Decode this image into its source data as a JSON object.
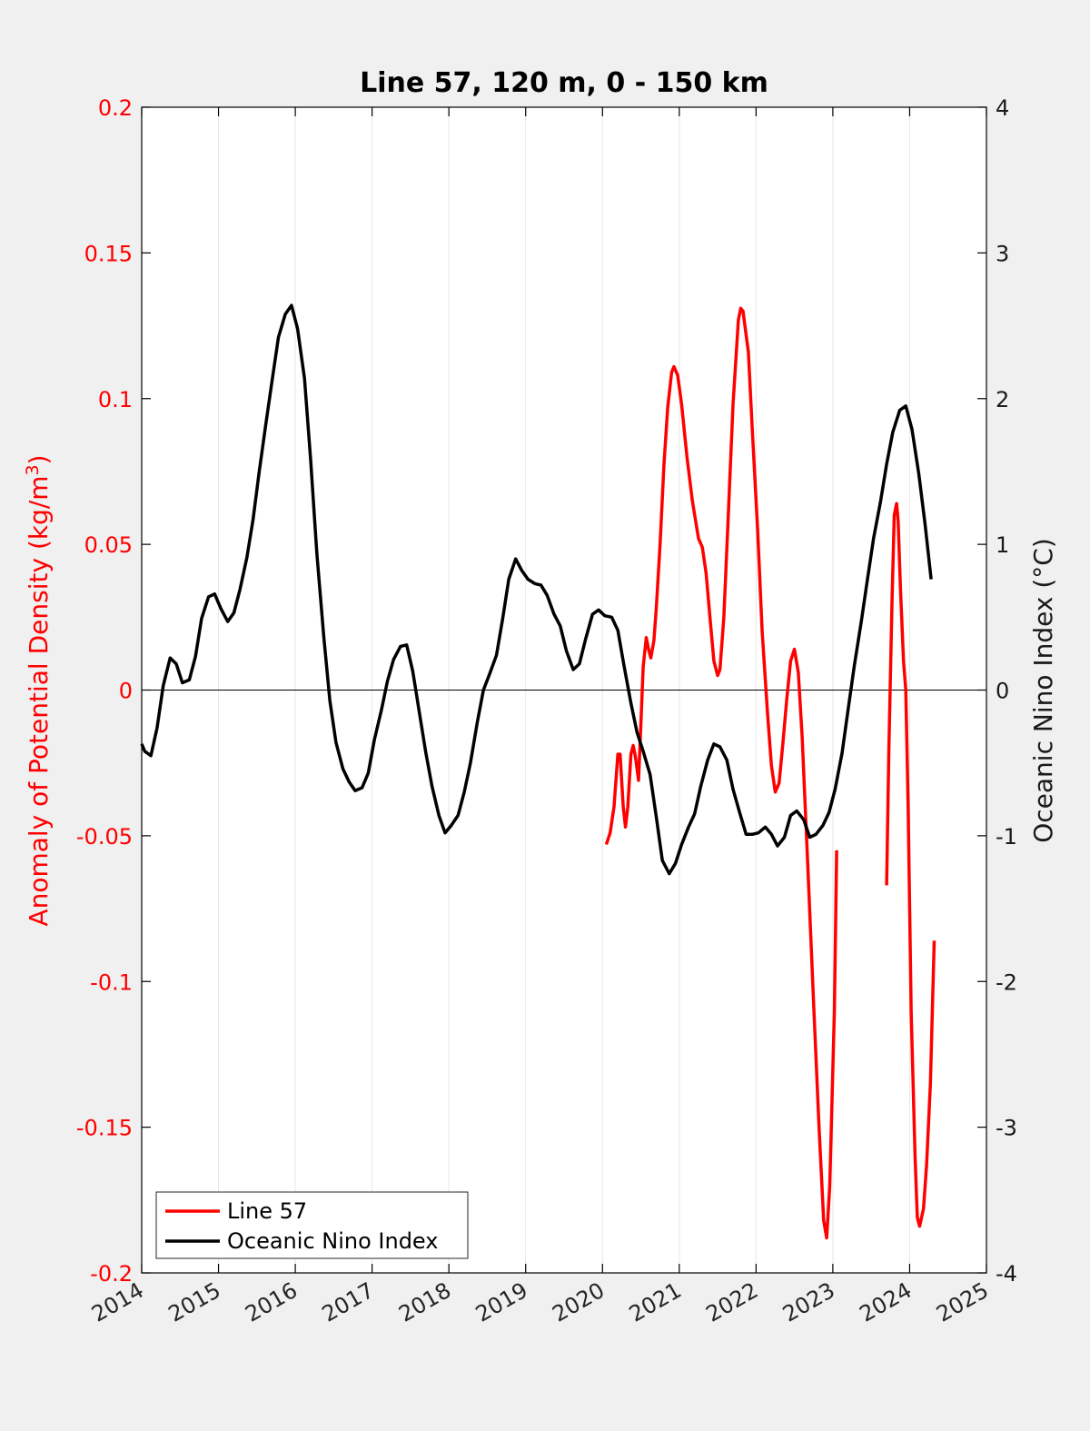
{
  "chart_data": {
    "type": "line",
    "title": "Line 57, 120 m, 0 - 150 km",
    "ylabel_left": "Anomaly of Potential Density (kg/m",
    "ylabel_left_sup": "3",
    "ylabel_left_close": ")",
    "ylabel_right": "Oceanic Nino Index (°C)",
    "xlim": [
      2014,
      2025
    ],
    "ylim_left": [
      -0.2,
      0.2
    ],
    "ylim_right": [
      -4,
      4
    ],
    "x_ticks": [
      "2014",
      "2015",
      "2016",
      "2017",
      "2018",
      "2019",
      "2020",
      "2021",
      "2022",
      "2023",
      "2024",
      "2025"
    ],
    "y_left_ticks": [
      "0.2",
      "0.15",
      "0.1",
      "0.05",
      "0",
      "-0.05",
      "-0.1",
      "-0.15",
      "-0.2"
    ],
    "y_right_ticks": [
      "4",
      "3",
      "2",
      "1",
      "0",
      "-1",
      "-2",
      "-3",
      "-4"
    ],
    "x_grid": true,
    "zero_line": true,
    "legend_position": "bottom-left",
    "series": [
      {
        "name": "Line 57",
        "axis": "left",
        "color": "#ff0000",
        "segments": [
          [
            [
              2020.05,
              -0.053
            ],
            [
              2020.1,
              -0.049
            ],
            [
              2020.15,
              -0.04
            ],
            [
              2020.2,
              -0.022
            ],
            [
              2020.23,
              -0.022
            ],
            [
              2020.27,
              -0.04
            ],
            [
              2020.3,
              -0.047
            ],
            [
              2020.33,
              -0.04
            ],
            [
              2020.37,
              -0.022
            ],
            [
              2020.4,
              -0.019
            ],
            [
              2020.43,
              -0.023
            ],
            [
              2020.47,
              -0.031
            ],
            [
              2020.5,
              -0.012
            ],
            [
              2020.53,
              0.008
            ],
            [
              2020.57,
              0.018
            ],
            [
              2020.6,
              0.014
            ],
            [
              2020.63,
              0.011
            ],
            [
              2020.67,
              0.017
            ],
            [
              2020.7,
              0.028
            ],
            [
              2020.75,
              0.05
            ],
            [
              2020.8,
              0.077
            ],
            [
              2020.85,
              0.097
            ],
            [
              2020.9,
              0.109
            ],
            [
              2020.93,
              0.111
            ],
            [
              2020.98,
              0.108
            ],
            [
              2021.03,
              0.098
            ],
            [
              2021.1,
              0.08
            ],
            [
              2021.17,
              0.065
            ],
            [
              2021.25,
              0.052
            ],
            [
              2021.3,
              0.049
            ],
            [
              2021.35,
              0.04
            ],
            [
              2021.4,
              0.025
            ],
            [
              2021.45,
              0.01
            ],
            [
              2021.5,
              0.005
            ],
            [
              2021.53,
              0.007
            ],
            [
              2021.58,
              0.025
            ],
            [
              2021.63,
              0.055
            ],
            [
              2021.7,
              0.098
            ],
            [
              2021.77,
              0.127
            ],
            [
              2021.8,
              0.131
            ],
            [
              2021.83,
              0.13
            ],
            [
              2021.9,
              0.116
            ],
            [
              2021.95,
              0.09
            ],
            [
              2022.02,
              0.055
            ],
            [
              2022.08,
              0.02
            ],
            [
              2022.15,
              -0.008
            ],
            [
              2022.2,
              -0.026
            ],
            [
              2022.25,
              -0.035
            ],
            [
              2022.3,
              -0.032
            ],
            [
              2022.35,
              -0.018
            ],
            [
              2022.4,
              -0.003
            ],
            [
              2022.45,
              0.01
            ],
            [
              2022.5,
              0.014
            ],
            [
              2022.55,
              0.006
            ],
            [
              2022.6,
              -0.016
            ],
            [
              2022.67,
              -0.058
            ],
            [
              2022.75,
              -0.108
            ],
            [
              2022.82,
              -0.15
            ],
            [
              2022.88,
              -0.182
            ],
            [
              2022.92,
              -0.188
            ],
            [
              2022.96,
              -0.17
            ],
            [
              2023.02,
              -0.11
            ],
            [
              2023.05,
              -0.055
            ]
          ],
          [
            [
              2023.7,
              -0.067
            ],
            [
              2023.73,
              -0.02
            ],
            [
              2023.77,
              0.03
            ],
            [
              2023.8,
              0.06
            ],
            [
              2023.83,
              0.064
            ],
            [
              2023.85,
              0.058
            ],
            [
              2023.88,
              0.035
            ],
            [
              2023.92,
              0.01
            ],
            [
              2023.95,
              0
            ],
            [
              2023.98,
              -0.04
            ],
            [
              2024.02,
              -0.11
            ],
            [
              2024.07,
              -0.16
            ],
            [
              2024.1,
              -0.181
            ],
            [
              2024.13,
              -0.184
            ],
            [
              2024.18,
              -0.178
            ],
            [
              2024.22,
              -0.163
            ],
            [
              2024.27,
              -0.135
            ],
            [
              2024.32,
              -0.086
            ]
          ]
        ]
      },
      {
        "name": "Oceanic Nino Index",
        "axis": "right",
        "color": "#000000",
        "segments": [
          [
            [
              2014.0,
              -0.37
            ],
            [
              2014.04,
              -0.42
            ],
            [
              2014.12,
              -0.45
            ],
            [
              2014.2,
              -0.26
            ],
            [
              2014.28,
              0.03
            ],
            [
              2014.37,
              0.22
            ],
            [
              2014.45,
              0.18
            ],
            [
              2014.53,
              0.05
            ],
            [
              2014.62,
              0.07
            ],
            [
              2014.7,
              0.23
            ],
            [
              2014.78,
              0.49
            ],
            [
              2014.87,
              0.64
            ],
            [
              2014.95,
              0.66
            ],
            [
              2015.03,
              0.56
            ],
            [
              2015.12,
              0.47
            ],
            [
              2015.2,
              0.53
            ],
            [
              2015.28,
              0.69
            ],
            [
              2015.37,
              0.91
            ],
            [
              2015.45,
              1.17
            ],
            [
              2015.53,
              1.5
            ],
            [
              2015.62,
              1.84
            ],
            [
              2015.7,
              2.13
            ],
            [
              2015.78,
              2.42
            ],
            [
              2015.87,
              2.58
            ],
            [
              2015.95,
              2.64
            ],
            [
              2016.03,
              2.48
            ],
            [
              2016.12,
              2.14
            ],
            [
              2016.2,
              1.58
            ],
            [
              2016.28,
              0.94
            ],
            [
              2016.37,
              0.37
            ],
            [
              2016.45,
              -0.07
            ],
            [
              2016.53,
              -0.36
            ],
            [
              2016.62,
              -0.54
            ],
            [
              2016.7,
              -0.63
            ],
            [
              2016.78,
              -0.69
            ],
            [
              2016.87,
              -0.67
            ],
            [
              2016.95,
              -0.57
            ],
            [
              2017.03,
              -0.34
            ],
            [
              2017.12,
              -0.14
            ],
            [
              2017.2,
              0.06
            ],
            [
              2017.28,
              0.21
            ],
            [
              2017.37,
              0.3
            ],
            [
              2017.45,
              0.31
            ],
            [
              2017.53,
              0.13
            ],
            [
              2017.62,
              -0.17
            ],
            [
              2017.7,
              -0.43
            ],
            [
              2017.78,
              -0.66
            ],
            [
              2017.87,
              -0.86
            ],
            [
              2017.95,
              -0.98
            ],
            [
              2018.03,
              -0.93
            ],
            [
              2018.12,
              -0.86
            ],
            [
              2018.2,
              -0.7
            ],
            [
              2018.28,
              -0.5
            ],
            [
              2018.37,
              -0.22
            ],
            [
              2018.45,
              0.0
            ],
            [
              2018.53,
              0.11
            ],
            [
              2018.62,
              0.24
            ],
            [
              2018.7,
              0.49
            ],
            [
              2018.78,
              0.76
            ],
            [
              2018.87,
              0.9
            ],
            [
              2018.95,
              0.82
            ],
            [
              2019.03,
              0.76
            ],
            [
              2019.12,
              0.73
            ],
            [
              2019.2,
              0.72
            ],
            [
              2019.28,
              0.65
            ],
            [
              2019.37,
              0.52
            ],
            [
              2019.45,
              0.44
            ],
            [
              2019.53,
              0.27
            ],
            [
              2019.62,
              0.14
            ],
            [
              2019.7,
              0.18
            ],
            [
              2019.78,
              0.35
            ],
            [
              2019.87,
              0.52
            ],
            [
              2019.95,
              0.55
            ],
            [
              2020.03,
              0.51
            ],
            [
              2020.12,
              0.5
            ],
            [
              2020.2,
              0.41
            ],
            [
              2020.28,
              0.17
            ],
            [
              2020.37,
              -0.09
            ],
            [
              2020.45,
              -0.29
            ],
            [
              2020.53,
              -0.42
            ],
            [
              2020.62,
              -0.58
            ],
            [
              2020.7,
              -0.87
            ],
            [
              2020.78,
              -1.17
            ],
            [
              2020.87,
              -1.26
            ],
            [
              2020.95,
              -1.19
            ],
            [
              2021.03,
              -1.06
            ],
            [
              2021.12,
              -0.94
            ],
            [
              2021.2,
              -0.85
            ],
            [
              2021.28,
              -0.66
            ],
            [
              2021.37,
              -0.48
            ],
            [
              2021.45,
              -0.37
            ],
            [
              2021.53,
              -0.39
            ],
            [
              2021.62,
              -0.48
            ],
            [
              2021.7,
              -0.68
            ],
            [
              2021.78,
              -0.83
            ],
            [
              2021.87,
              -0.99
            ],
            [
              2021.95,
              -0.99
            ],
            [
              2022.03,
              -0.98
            ],
            [
              2022.12,
              -0.94
            ],
            [
              2022.2,
              -0.99
            ],
            [
              2022.28,
              -1.07
            ],
            [
              2022.37,
              -1.01
            ],
            [
              2022.45,
              -0.86
            ],
            [
              2022.53,
              -0.83
            ],
            [
              2022.62,
              -0.89
            ],
            [
              2022.7,
              -1.01
            ],
            [
              2022.78,
              -0.99
            ],
            [
              2022.87,
              -0.93
            ],
            [
              2022.95,
              -0.84
            ],
            [
              2023.03,
              -0.68
            ],
            [
              2023.12,
              -0.43
            ],
            [
              2023.2,
              -0.13
            ],
            [
              2023.28,
              0.17
            ],
            [
              2023.37,
              0.47
            ],
            [
              2023.45,
              0.76
            ],
            [
              2023.53,
              1.04
            ],
            [
              2023.62,
              1.29
            ],
            [
              2023.7,
              1.55
            ],
            [
              2023.78,
              1.77
            ],
            [
              2023.87,
              1.92
            ],
            [
              2023.95,
              1.95
            ],
            [
              2024.03,
              1.79
            ],
            [
              2024.12,
              1.48
            ],
            [
              2024.2,
              1.14
            ],
            [
              2024.28,
              0.76
            ]
          ]
        ]
      }
    ]
  }
}
